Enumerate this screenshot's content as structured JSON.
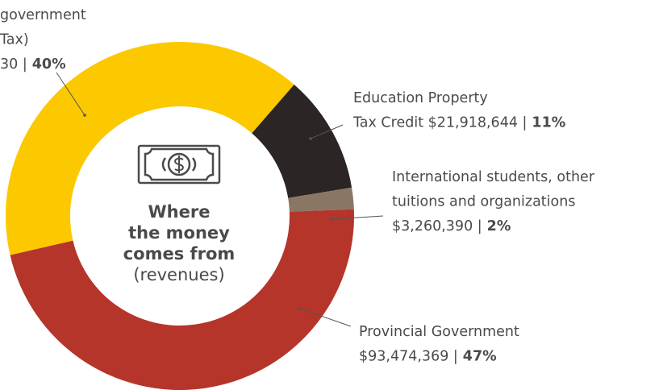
{
  "chart_data": {
    "type": "donut",
    "center_lines": [
      "Where",
      "the money",
      "comes from"
    ],
    "center_note": "(revenues)",
    "slices": [
      {
        "lines": [
          "government",
          "Tax)",
          "30 |"
        ],
        "value": 40,
        "value_label": "40%",
        "color": "#fcc800"
      },
      {
        "lines": [
          "Education Property",
          "Tax Credit $21,918,644 |"
        ],
        "value": 11,
        "value_label": "11%",
        "color": "#2b2525"
      },
      {
        "lines": [
          "International students, other",
          "tuitions and organizations",
          "$3,260,390 |"
        ],
        "value": 2,
        "value_label": "2%",
        "color": "#8a7763"
      },
      {
        "lines": [
          "Provincial Government",
          "$93,474,369 |"
        ],
        "value": 47,
        "value_label": "47%",
        "color": "#b5352a"
      }
    ]
  }
}
